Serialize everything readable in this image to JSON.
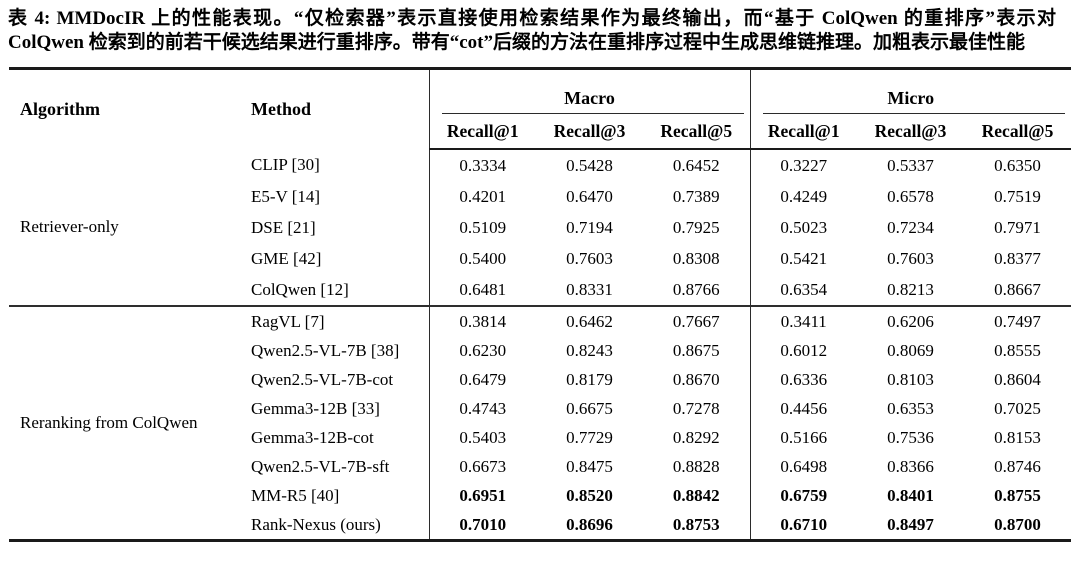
{
  "theme": {
    "background": "#ffffff",
    "text": "#000000",
    "rule": "#1a1a1a"
  },
  "caption": "表 4: MMDocIR 上的性能表现。“仅检索器”表示直接使用检索结果作为最终输出，而“基于 ColQwen 的重排序”表示对 ColQwen 检索到的前若干候选结果进行重排序。带有“cot”后缀的方法在重排序过程中生成思维链推理。加粗表示最佳性能",
  "table": {
    "headers": {
      "algorithm": "Algorithm",
      "method": "Method"
    },
    "groups": [
      {
        "label": "Macro",
        "subcols": [
          "Recall@1",
          "Recall@3",
          "Recall@5"
        ]
      },
      {
        "label": "Micro",
        "subcols": [
          "Recall@1",
          "Recall@3",
          "Recall@5"
        ]
      }
    ],
    "row_groups": [
      {
        "algorithm": "Retriever-only",
        "rows": [
          {
            "method": "CLIP [30]",
            "values": [
              "0.3334",
              "0.5428",
              "0.6452",
              "0.3227",
              "0.5337",
              "0.6350"
            ],
            "bold": false
          },
          {
            "method": "E5-V [14]",
            "values": [
              "0.4201",
              "0.6470",
              "0.7389",
              "0.4249",
              "0.6578",
              "0.7519"
            ],
            "bold": false
          },
          {
            "method": "DSE [21]",
            "values": [
              "0.5109",
              "0.7194",
              "0.7925",
              "0.5023",
              "0.7234",
              "0.7971"
            ],
            "bold": false
          },
          {
            "method": "GME [42]",
            "values": [
              "0.5400",
              "0.7603",
              "0.8308",
              "0.5421",
              "0.7603",
              "0.8377"
            ],
            "bold": false
          },
          {
            "method": "ColQwen [12]",
            "values": [
              "0.6481",
              "0.8331",
              "0.8766",
              "0.6354",
              "0.8213",
              "0.8667"
            ],
            "bold": false
          }
        ]
      },
      {
        "algorithm": "Reranking from ColQwen",
        "rows": [
          {
            "method": "RagVL [7]",
            "values": [
              "0.3814",
              "0.6462",
              "0.7667",
              "0.3411",
              "0.6206",
              "0.7497"
            ],
            "bold": false
          },
          {
            "method": "Qwen2.5-VL-7B [38]",
            "values": [
              "0.6230",
              "0.8243",
              "0.8675",
              "0.6012",
              "0.8069",
              "0.8555"
            ],
            "bold": false
          },
          {
            "method": "Qwen2.5-VL-7B-cot",
            "values": [
              "0.6479",
              "0.8179",
              "0.8670",
              "0.6336",
              "0.8103",
              "0.8604"
            ],
            "bold": false
          },
          {
            "method": "Gemma3-12B [33]",
            "values": [
              "0.4743",
              "0.6675",
              "0.7278",
              "0.4456",
              "0.6353",
              "0.7025"
            ],
            "bold": false
          },
          {
            "method": "Gemma3-12B-cot",
            "values": [
              "0.5403",
              "0.7729",
              "0.8292",
              "0.5166",
              "0.7536",
              "0.8153"
            ],
            "bold": false
          },
          {
            "method": "Qwen2.5-VL-7B-sft",
            "values": [
              "0.6673",
              "0.8475",
              "0.8828",
              "0.6498",
              "0.8366",
              "0.8746"
            ],
            "bold": false
          },
          {
            "method": "MM-R5 [40]",
            "values": [
              "0.6951",
              "0.8520",
              "0.8842",
              "0.6759",
              "0.8401",
              "0.8755"
            ],
            "bold": true
          },
          {
            "method": "Rank-Nexus (ours)",
            "values": [
              "0.7010",
              "0.8696",
              "0.8753",
              "0.6710",
              "0.8497",
              "0.8700"
            ],
            "bold": true
          }
        ]
      }
    ]
  }
}
